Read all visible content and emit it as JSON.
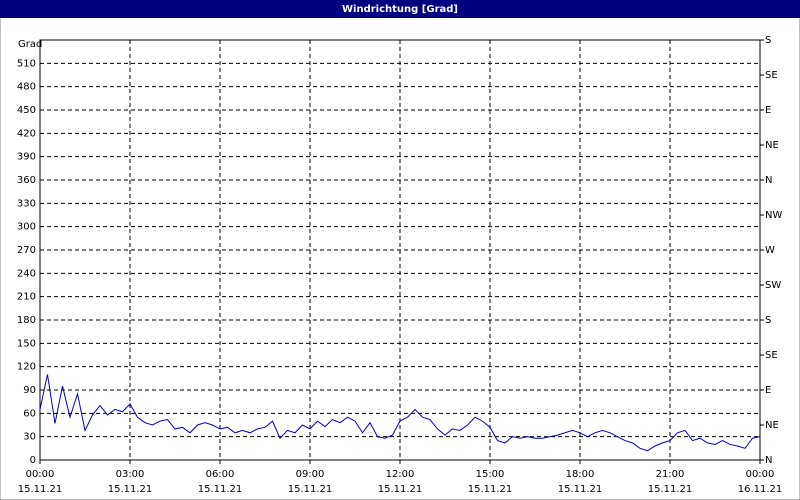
{
  "chart_data": {
    "type": "line",
    "title": "Windrichtung [Grad]",
    "y_label": "Grad",
    "x": [
      0,
      0.25,
      0.5,
      0.75,
      1,
      1.25,
      1.5,
      1.75,
      2,
      2.25,
      2.5,
      2.75,
      3,
      3.25,
      3.5,
      3.75,
      4,
      4.25,
      4.5,
      4.75,
      5,
      5.25,
      5.5,
      5.75,
      6,
      6.25,
      6.5,
      6.75,
      7,
      7.25,
      7.5,
      7.75,
      8,
      8.25,
      8.5,
      8.75,
      9,
      9.25,
      9.5,
      9.75,
      10,
      10.25,
      10.5,
      10.75,
      11,
      11.25,
      11.5,
      11.75,
      12,
      12.25,
      12.5,
      12.75,
      13,
      13.25,
      13.5,
      13.75,
      14,
      14.25,
      14.5,
      14.75,
      15,
      15.25,
      15.5,
      15.75,
      16,
      16.25,
      16.5,
      16.75,
      17,
      17.25,
      17.5,
      17.75,
      18,
      18.25,
      18.5,
      18.75,
      19,
      19.25,
      19.5,
      19.75,
      20,
      20.25,
      20.5,
      20.75,
      21,
      21.25,
      21.5,
      21.75,
      22,
      22.25,
      22.5,
      22.75,
      23,
      23.25,
      23.5,
      23.75,
      24
    ],
    "series": [
      {
        "name": "Windrichtung",
        "color": "#0000cc",
        "values": [
          65,
          110,
          47,
          95,
          55,
          85,
          38,
          58,
          70,
          58,
          65,
          62,
          72,
          55,
          48,
          45,
          50,
          52,
          40,
          42,
          35,
          45,
          48,
          45,
          40,
          42,
          35,
          38,
          35,
          40,
          42,
          50,
          28,
          38,
          35,
          45,
          40,
          50,
          43,
          52,
          48,
          55,
          50,
          35,
          48,
          30,
          28,
          32,
          50,
          55,
          65,
          55,
          52,
          40,
          32,
          40,
          38,
          45,
          55,
          50,
          42,
          25,
          22,
          30,
          28,
          30,
          28,
          28,
          30,
          32,
          35,
          38,
          35,
          30,
          35,
          38,
          35,
          30,
          25,
          22,
          15,
          12,
          18,
          22,
          25,
          35,
          38,
          25,
          28,
          22,
          20,
          25,
          20,
          18,
          15,
          28,
          30
        ]
      }
    ],
    "xlim": [
      0,
      24
    ],
    "xticks": [
      {
        "value": 0,
        "label": "00:00"
      },
      {
        "value": 3,
        "label": "03:00"
      },
      {
        "value": 6,
        "label": "06:00"
      },
      {
        "value": 9,
        "label": "09:00"
      },
      {
        "value": 12,
        "label": "12:00"
      },
      {
        "value": 15,
        "label": "15:00"
      },
      {
        "value": 18,
        "label": "18:00"
      },
      {
        "value": 21,
        "label": "21:00"
      },
      {
        "value": 24,
        "label": "00:00"
      }
    ],
    "xtick_dates": [
      "15.11.21",
      "15.11.21",
      "15.11.21",
      "15.11.21",
      "15.11.21",
      "15.11.21",
      "15.11.21",
      "15.11.21",
      "16.11.21"
    ],
    "ylim": [
      0,
      540
    ],
    "yticks": [
      0,
      30,
      60,
      90,
      120,
      150,
      180,
      210,
      240,
      270,
      300,
      330,
      360,
      390,
      420,
      450,
      480,
      510
    ],
    "y2lim": [
      0,
      540
    ],
    "y2ticks": [
      {
        "value": 0,
        "label": "N"
      },
      {
        "value": 45,
        "label": "NE"
      },
      {
        "value": 90,
        "label": "E"
      },
      {
        "value": 135,
        "label": "SE"
      },
      {
        "value": 180,
        "label": "S"
      },
      {
        "value": 225,
        "label": "SW"
      },
      {
        "value": 270,
        "label": "W"
      },
      {
        "value": 315,
        "label": "NW"
      },
      {
        "value": 360,
        "label": "N"
      },
      {
        "value": 405,
        "label": "NE"
      },
      {
        "value": 450,
        "label": "E"
      },
      {
        "value": 495,
        "label": "SE"
      },
      {
        "value": 540,
        "label": "S"
      }
    ],
    "grid": true
  }
}
